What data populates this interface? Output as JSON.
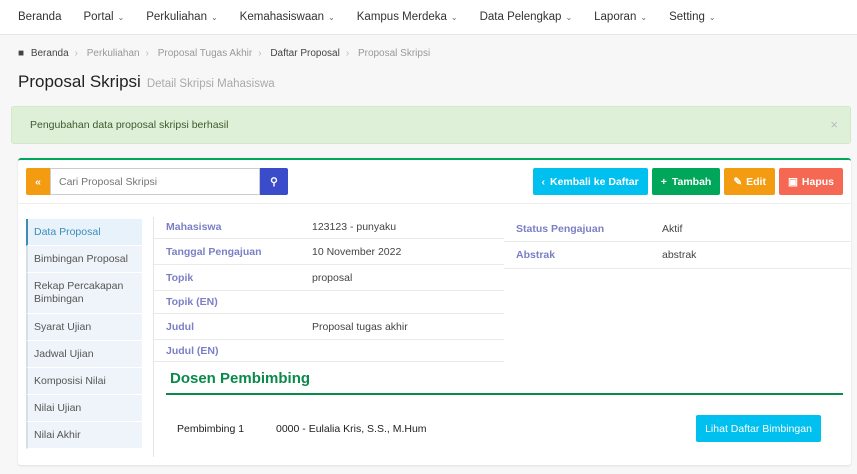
{
  "nav": {
    "items": [
      {
        "label": "Beranda",
        "dropdown": false
      },
      {
        "label": "Portal",
        "dropdown": true
      },
      {
        "label": "Perkuliahan",
        "dropdown": true
      },
      {
        "label": "Kemahasiswaan",
        "dropdown": true
      },
      {
        "label": "Kampus Merdeka",
        "dropdown": true
      },
      {
        "label": "Data Pelengkap",
        "dropdown": true
      },
      {
        "label": "Laporan",
        "dropdown": true
      },
      {
        "label": "Setting",
        "dropdown": true
      }
    ]
  },
  "breadcrumb": [
    "Beranda",
    "Perkuliahan",
    "Proposal Tugas Akhir",
    "Daftar Proposal",
    "Proposal Skripsi"
  ],
  "page": {
    "title": "Proposal Skripsi",
    "subtitle": "Detail Skripsi Mahasiswa"
  },
  "alert": {
    "message": "Pengubahan data proposal skripsi berhasil",
    "close": "×"
  },
  "toolbar": {
    "collapse": "«",
    "search_placeholder": "Cari Proposal Skripsi",
    "back": "Kembali ke Daftar",
    "add": "Tambah",
    "edit": "Edit",
    "delete": "Hapus"
  },
  "sidebar": [
    "Data Proposal",
    "Bimbingan Proposal",
    "Rekap Percakapan Bimbingan",
    "Syarat Ujian",
    "Jadwal Ujian",
    "Komposisi Nilai",
    "Nilai Ujian",
    "Nilai Akhir"
  ],
  "detail_left": [
    {
      "label": "Mahasiswa",
      "value": "123123 - punyaku"
    },
    {
      "label": "Tanggal Pengajuan",
      "value": "10 November 2022"
    },
    {
      "label": "Topik",
      "value": "proposal"
    },
    {
      "label": "Topik (EN)",
      "value": ""
    },
    {
      "label": "Judul",
      "value": "Proposal tugas akhir"
    },
    {
      "label": "Judul (EN)",
      "value": ""
    }
  ],
  "detail_right": [
    {
      "label": "Status Pengajuan",
      "value": "Aktif"
    },
    {
      "label": "Abstrak",
      "value": "abstrak"
    }
  ],
  "dosen": {
    "heading": "Dosen Pembimbing",
    "role": "Pembimbing 1",
    "name": "0000 - Eulalia Kris, S.S., M.Hum",
    "button": "Lihat Daftar Bimbingan"
  },
  "colors": {
    "success": "#00a65a",
    "info": "#00c0ef",
    "warning": "#f39c12",
    "danger": "#f56954",
    "primary": "#3b4cca"
  }
}
